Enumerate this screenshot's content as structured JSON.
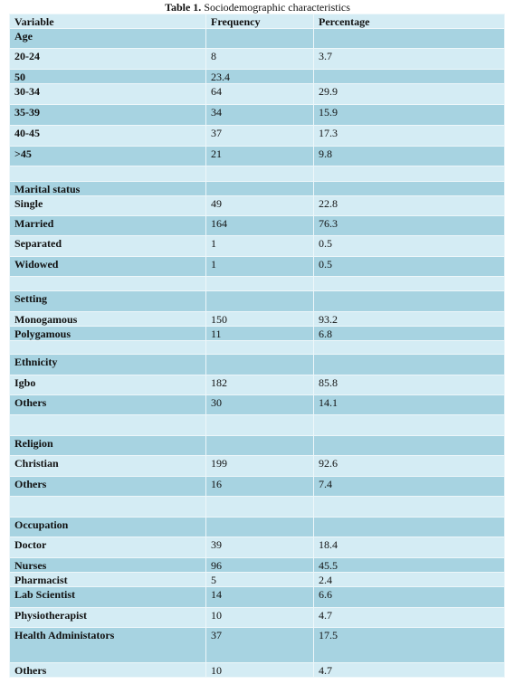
{
  "title": {
    "label": "Table 1.",
    "text": "Sociodemographic characteristics"
  },
  "table": {
    "header": [
      "Variable",
      "Frequency",
      "Percentage"
    ],
    "rows": [
      [
        "Age",
        null,
        null
      ],
      [
        "20-24",
        "8",
        "3.7"
      ],
      [
        "50",
        "23.4",
        null
      ],
      [
        "30-34",
        "64",
        "29.9"
      ],
      [
        "35-39",
        "34",
        "15.9"
      ],
      [
        "40-45",
        "37",
        "17.3"
      ],
      [
        ">45",
        "21",
        "9.8"
      ],
      [
        null,
        null,
        null
      ],
      [
        "Marital status",
        null,
        null
      ],
      [
        "Single",
        "49",
        "22.8"
      ],
      [
        "Married",
        "164",
        "76.3"
      ],
      [
        "Separated",
        "1",
        "0.5"
      ],
      [
        "Widowed",
        "1",
        "0.5"
      ],
      [
        null,
        null,
        null
      ],
      [
        "Setting",
        null,
        null
      ],
      [
        "Monogamous",
        "150",
        "93.2"
      ],
      [
        "Polygamous",
        "11",
        "6.8"
      ],
      [
        null,
        null,
        null
      ],
      [
        "Ethnicity",
        null,
        null
      ],
      [
        "Igbo",
        "182",
        "85.8"
      ],
      [
        "Others",
        "30",
        "14.1"
      ],
      [
        null,
        null,
        null
      ],
      [
        "Religion",
        null,
        null
      ],
      [
        "Christian",
        "199",
        "92.6"
      ],
      [
        "Others",
        "16",
        "7.4"
      ],
      [
        null,
        null,
        null
      ],
      [
        "Occupation",
        null,
        null
      ],
      [
        "Doctor",
        "39",
        "18.4"
      ],
      [
        "Nurses",
        "96",
        "45.5"
      ],
      [
        "Pharmacist",
        "5",
        "2.4"
      ],
      [
        "Lab Scientist",
        "14",
        "6.6"
      ],
      [
        "Physiotherapist",
        "10",
        "4.7"
      ],
      [
        "Health Administators",
        "37",
        "17.5"
      ],
      [
        "Others",
        "10",
        "4.7"
      ]
    ]
  }
}
